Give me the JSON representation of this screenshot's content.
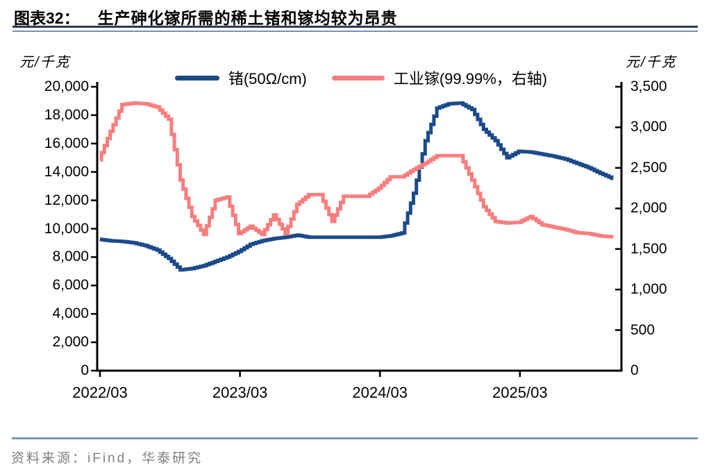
{
  "header": {
    "figure_label": "图表32：",
    "title": "生产砷化镓所需的稀土锗和镓均较为昂贵"
  },
  "footer": {
    "source": "资料来源：iFind，华泰研究"
  },
  "colors": {
    "germanium_line": "#1b4a8a",
    "gallium_line": "#f87e7e",
    "axis": "#000000",
    "title_rule_dark": "#333a4a",
    "title_rule_blue": "#6f92c1",
    "footer_rule": "#7b97c2",
    "source_text": "#7f7f7f"
  },
  "chart_data": {
    "type": "line",
    "title": "生产砷化镓所需的稀土锗和镓均较为昂贵",
    "legend_position": "top",
    "grid": false,
    "x": [
      "2022/03",
      "2022/04",
      "2022/05",
      "2022/06",
      "2022/07",
      "2022/08",
      "2022/09",
      "2022/10",
      "2022/11",
      "2022/12",
      "2023/01",
      "2023/02",
      "2023/03",
      "2023/04",
      "2023/05",
      "2023/06",
      "2023/07",
      "2023/08",
      "2023/09",
      "2023/10",
      "2023/11",
      "2023/12",
      "2024/01",
      "2024/02",
      "2024/03",
      "2024/04",
      "2024/05",
      "2024/06",
      "2024/07",
      "2024/08",
      "2024/09",
      "2024/10",
      "2024/11",
      "2024/12",
      "2025/01",
      "2025/02",
      "2025/03",
      "2025/04",
      "2025/05",
      "2025/06",
      "2025/07",
      "2025/08",
      "2025/09",
      "2025/10",
      "2025/11"
    ],
    "x_tick_indices": [
      0,
      12,
      24,
      36
    ],
    "x_tick_labels": [
      "2022/03",
      "2023/03",
      "2024/03",
      "2025/03"
    ],
    "left_axis": {
      "unit": "元/千克",
      "min": 0,
      "max": 20000,
      "step": 2000,
      "tick_labels": [
        "0",
        "2,000",
        "4,000",
        "6,000",
        "8,000",
        "10,000",
        "12,000",
        "14,000",
        "16,000",
        "18,000",
        "20,000"
      ]
    },
    "right_axis": {
      "unit": "元/千克",
      "min": 0,
      "max": 3500,
      "step": 500,
      "tick_labels": [
        "0",
        "500",
        "1,000",
        "1,500",
        "2,000",
        "2,500",
        "3,000",
        "3,500"
      ]
    },
    "series": [
      {
        "name": "锗(50Ω/cm)",
        "axis": "left",
        "color": "#1b4a8a",
        "values": [
          9250,
          9150,
          9100,
          9000,
          8800,
          8500,
          7900,
          7100,
          7200,
          7400,
          7700,
          8000,
          8400,
          8900,
          9150,
          9300,
          9400,
          9550,
          9400,
          9400,
          9400,
          9400,
          9400,
          9400,
          9400,
          9500,
          9700,
          12500,
          16200,
          18500,
          18800,
          18850,
          18400,
          17000,
          16200,
          15000,
          15450,
          15400,
          15250,
          15100,
          14900,
          14600,
          14300,
          13900,
          13550
        ]
      },
      {
        "name": "工业镓(99.99%，右轴)",
        "axis": "right",
        "color": "#f87e7e",
        "values": [
          2600,
          2950,
          3280,
          3300,
          3290,
          3250,
          3100,
          2350,
          1900,
          1680,
          2100,
          2140,
          1690,
          1780,
          1680,
          1920,
          1690,
          2050,
          2170,
          2170,
          1840,
          2150,
          2150,
          2150,
          2250,
          2390,
          2390,
          2480,
          2560,
          2650,
          2650,
          2650,
          2350,
          2020,
          1840,
          1820,
          1830,
          1900,
          1800,
          1770,
          1740,
          1700,
          1690,
          1660,
          1650
        ]
      }
    ]
  }
}
